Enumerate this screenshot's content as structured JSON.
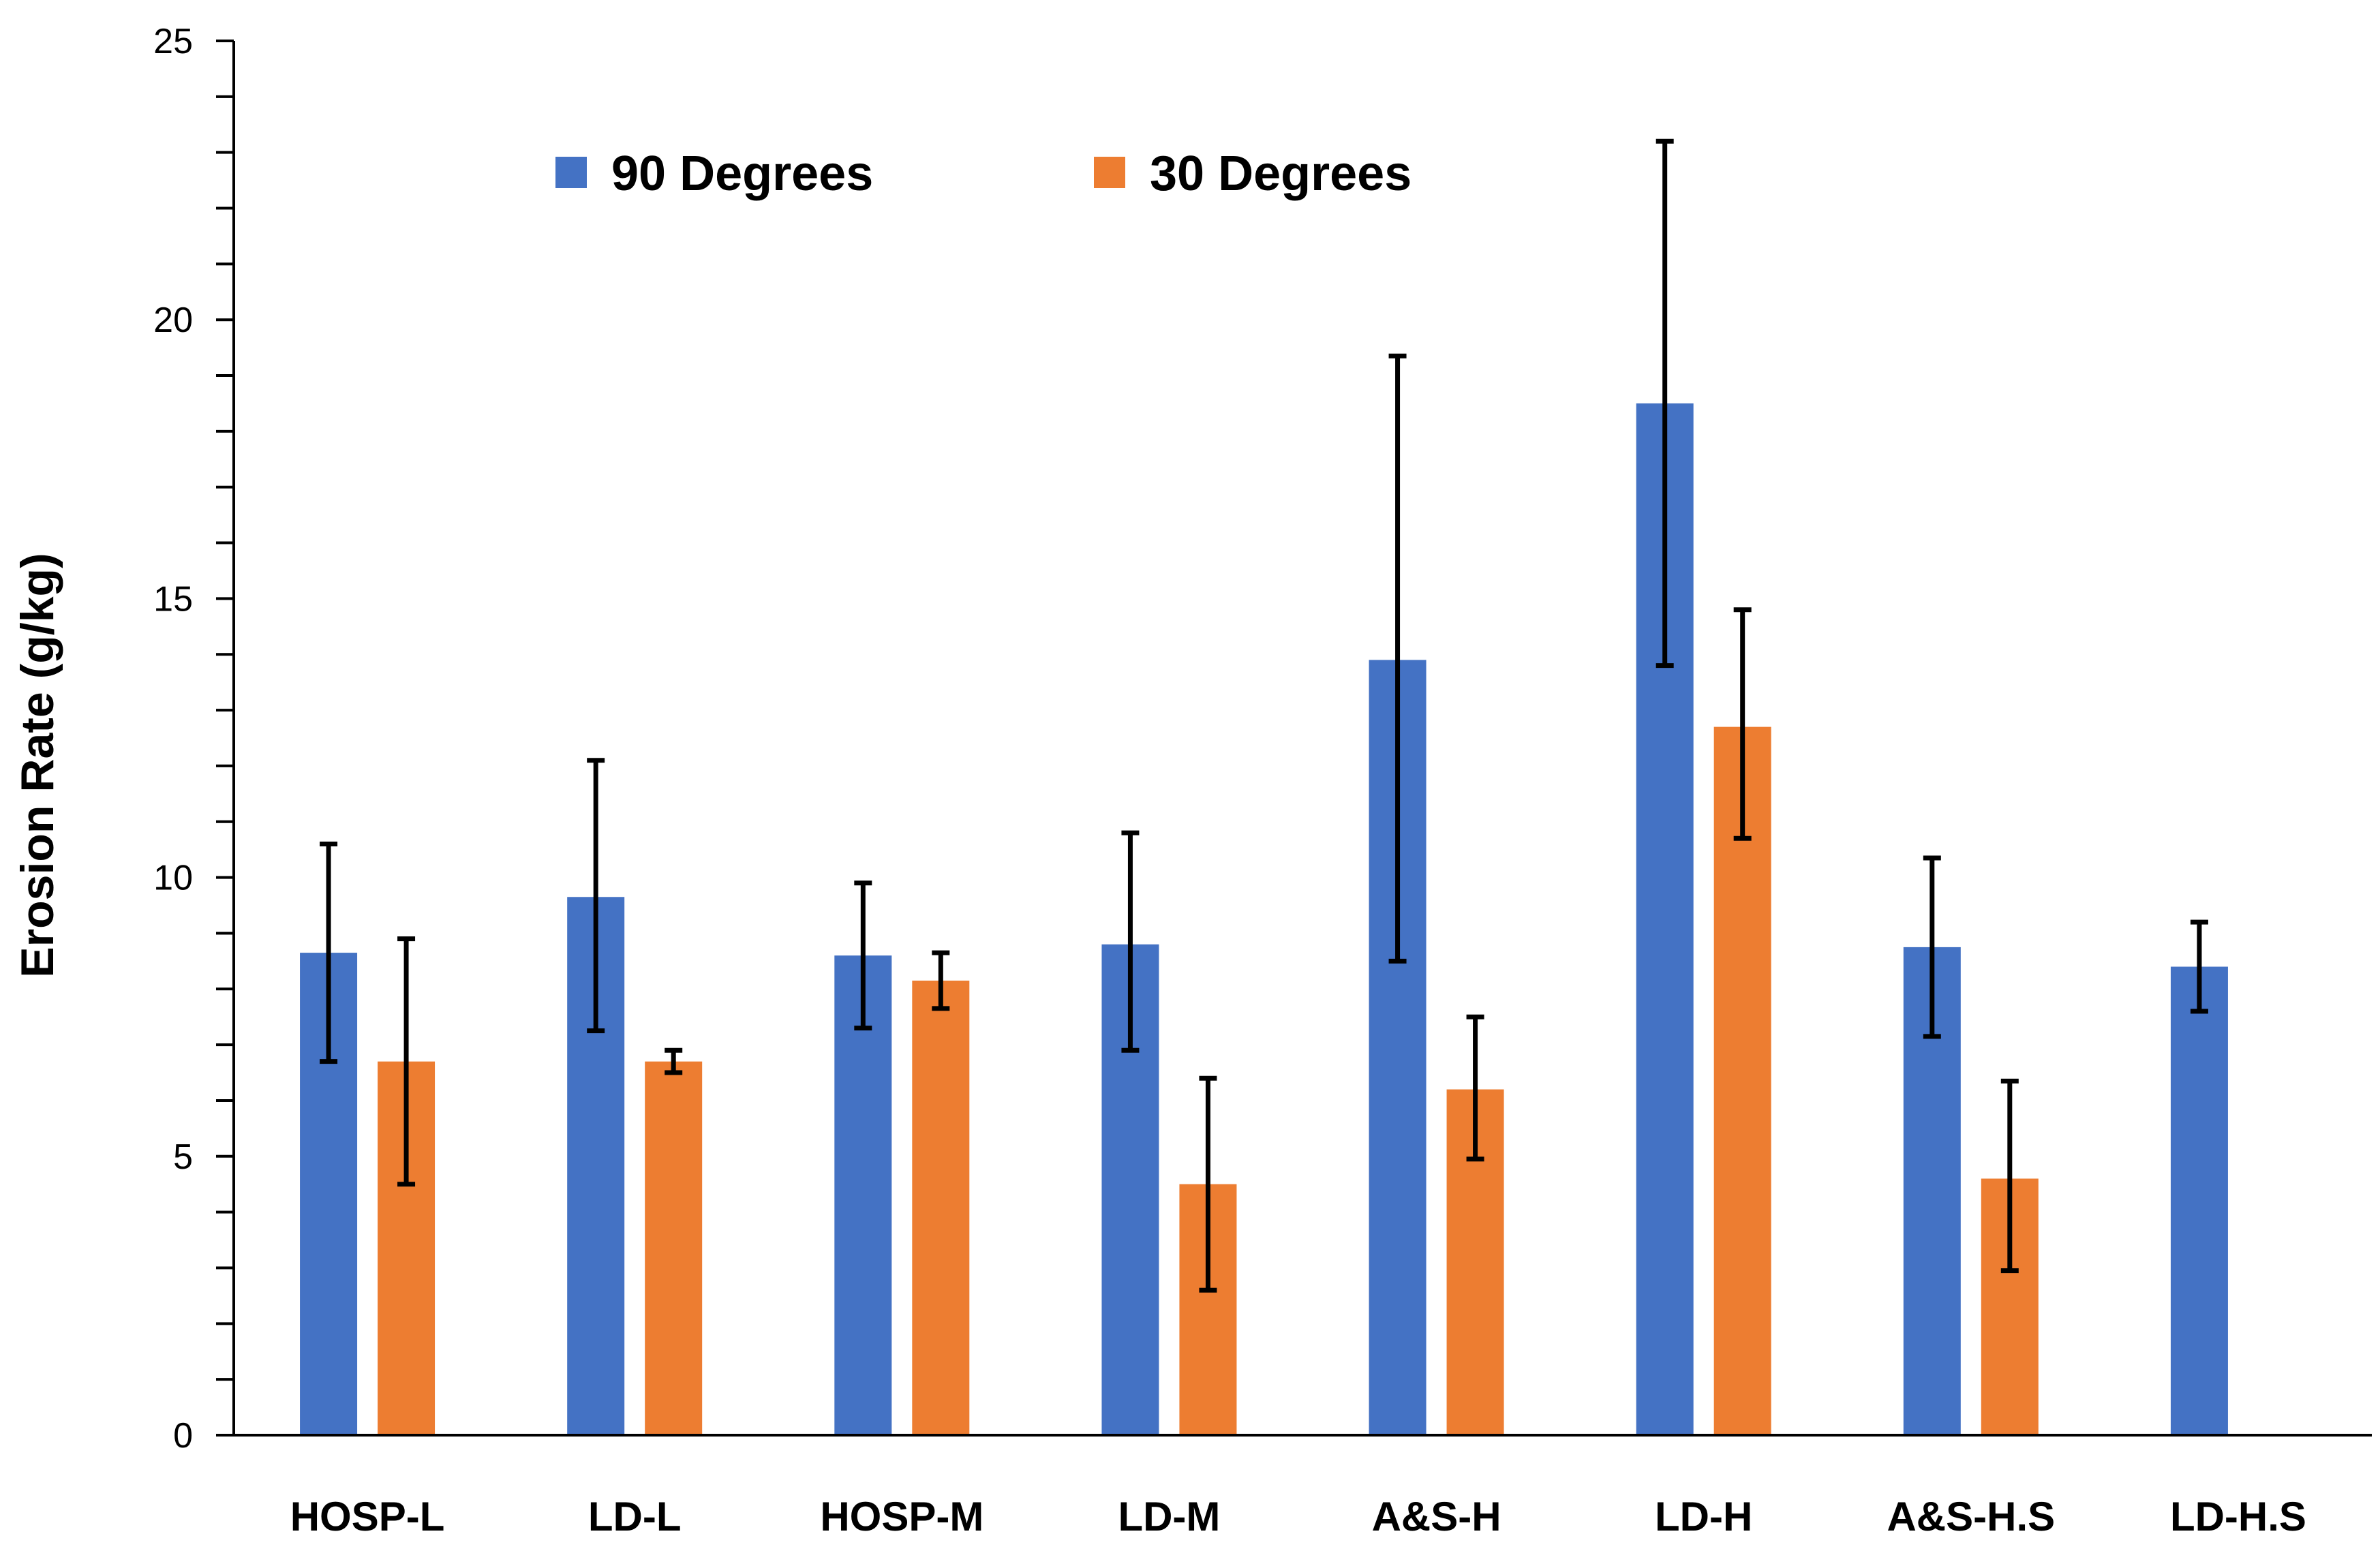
{
  "chart_data": {
    "type": "bar",
    "title": "",
    "xlabel": "",
    "ylabel": "Erosion Rate (g/kg)",
    "ylim": [
      0,
      25
    ],
    "yticks": [
      "0",
      "5",
      "10",
      "15",
      "20",
      "25"
    ],
    "ytick_values": [
      0,
      5,
      10,
      15,
      20,
      25
    ],
    "minor_tick_step": 1,
    "grid": false,
    "legend_position": "top-center",
    "categories": [
      "HOSP-L",
      "LD-L",
      "HOSP-M",
      "LD-M",
      "A&S-H",
      "LD-H",
      "A&S-H.S",
      "LD-H.S"
    ],
    "series": [
      {
        "name": "90 Degrees",
        "color": "#4472C4",
        "values": [
          8.65,
          9.65,
          8.6,
          8.8,
          13.9,
          18.5,
          8.75,
          8.4
        ],
        "err_low": [
          6.7,
          7.25,
          7.3,
          6.9,
          8.5,
          13.8,
          7.15,
          7.6
        ],
        "err_high": [
          10.6,
          12.1,
          9.9,
          10.8,
          19.35,
          23.2,
          10.35,
          9.2
        ]
      },
      {
        "name": "30 Degrees",
        "color": "#ED7D31",
        "values": [
          6.7,
          6.7,
          8.15,
          4.5,
          6.2,
          12.7,
          4.6,
          null
        ],
        "err_low": [
          4.5,
          6.5,
          7.65,
          2.6,
          4.95,
          10.7,
          2.95,
          null
        ],
        "err_high": [
          8.9,
          6.9,
          8.65,
          6.4,
          7.5,
          14.8,
          6.35,
          null
        ]
      }
    ]
  }
}
